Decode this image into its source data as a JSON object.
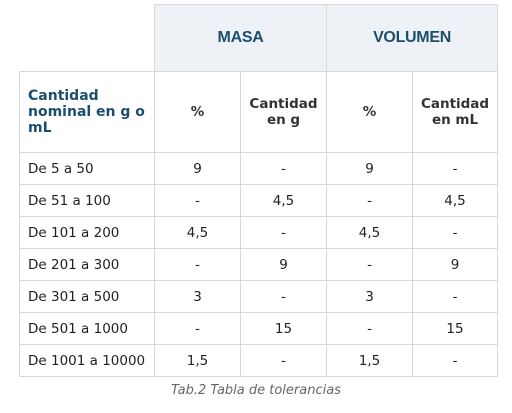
{
  "table": {
    "group_headers": {
      "masa": "MASA",
      "volumen": "VOLUMEN"
    },
    "sub_headers": {
      "row_head": "Cantidad nominal en g o mL",
      "masa_pct": "%",
      "masa_qty": "Cantidad en g",
      "vol_pct": "%",
      "vol_qty": "Cantidad en mL"
    },
    "rows": [
      {
        "range": "De 5 a 50",
        "masa_pct": "9",
        "masa_qty": "-",
        "vol_pct": "9",
        "vol_qty": "-"
      },
      {
        "range": "De 51 a 100",
        "masa_pct": "-",
        "masa_qty": "4,5",
        "vol_pct": "-",
        "vol_qty": "4,5"
      },
      {
        "range": "De 101 a 200",
        "masa_pct": "4,5",
        "masa_qty": "-",
        "vol_pct": "4,5",
        "vol_qty": "-"
      },
      {
        "range": "De 201 a 300",
        "masa_pct": "-",
        "masa_qty": "9",
        "vol_pct": "-",
        "vol_qty": "9"
      },
      {
        "range": "De 301 a 500",
        "masa_pct": "3",
        "masa_qty": "-",
        "vol_pct": "3",
        "vol_qty": "-"
      },
      {
        "range": "De 501 a 1000",
        "masa_pct": "-",
        "masa_qty": "15",
        "vol_pct": "-",
        "vol_qty": "15"
      },
      {
        "range": "De 1001 a 10000",
        "masa_pct": "1,5",
        "masa_qty": "-",
        "vol_pct": "1,5",
        "vol_qty": "-"
      }
    ]
  },
  "caption": "Tab.2 Tabla de tolerancias",
  "colors": {
    "header_text": "#1d4e6e",
    "header_bg": "#eef2f6",
    "border": "#d6d9dc"
  }
}
